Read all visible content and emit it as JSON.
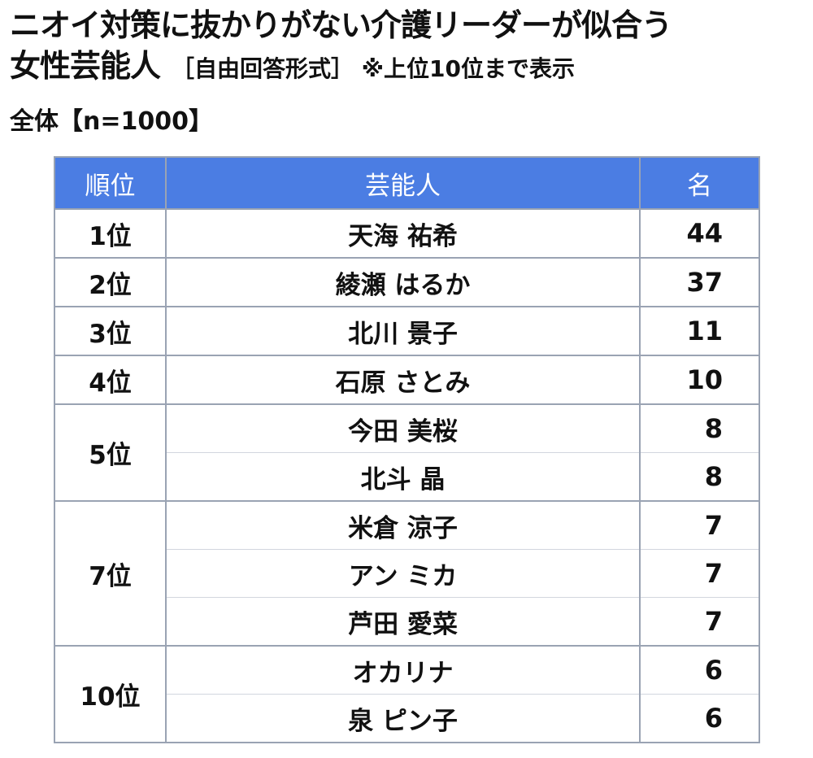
{
  "title": {
    "line1": "ニオイ対策に抜かりがない介護リーダーが似合う",
    "line2": "女性芸能人",
    "note": "［自由回答形式］ ※上位10位まで表示"
  },
  "sample": "全体【n=1000】",
  "table": {
    "headers": {
      "rank": "順位",
      "name": "芸能人",
      "count": "名"
    },
    "rows": [
      {
        "rank": "1位",
        "name": "天海 祐希",
        "count": "44"
      },
      {
        "rank": "2位",
        "name": "綾瀬 はるか",
        "count": "37"
      },
      {
        "rank": "3位",
        "name": "北川 景子",
        "count": "11"
      },
      {
        "rank": "4位",
        "name": "石原 さとみ",
        "count": "10"
      },
      {
        "rank": "5位",
        "name": "今田 美桜",
        "count": "8"
      },
      {
        "rank": "",
        "name": "北斗 晶",
        "count": "8"
      },
      {
        "rank": "7位",
        "name": "米倉 涼子",
        "count": "7"
      },
      {
        "rank": "",
        "name": "アン ミカ",
        "count": "7"
      },
      {
        "rank": "",
        "name": "芦田 愛菜",
        "count": "7"
      },
      {
        "rank": "10位",
        "name": "オカリナ",
        "count": "6"
      },
      {
        "rank": "",
        "name": "泉 ピン子",
        "count": "6"
      }
    ]
  }
}
